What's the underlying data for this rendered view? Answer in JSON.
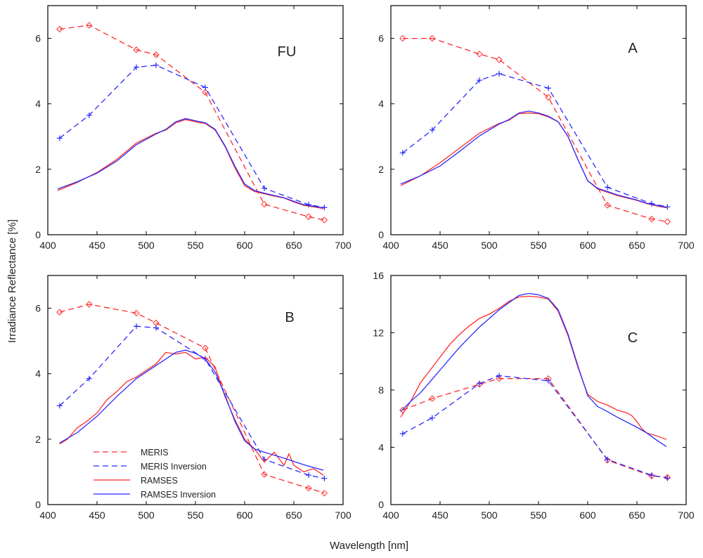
{
  "figure": {
    "ylabel": "Irradiance Reflectance [%]",
    "xlabel": "Wavelength [nm]",
    "colors": {
      "meris": "#ff2a2a",
      "inversion": "#2a2aff",
      "axis": "#000000"
    }
  },
  "legend": {
    "items": [
      {
        "label": "MERIS",
        "style": "dashed",
        "color": "#ff2a2a"
      },
      {
        "label": "MERIS Inversion",
        "style": "dashed",
        "color": "#2a2aff"
      },
      {
        "label": "RAMSES",
        "style": "solid",
        "color": "#ff2a2a"
      },
      {
        "label": "RAMSES Inversion",
        "style": "solid",
        "color": "#2a2aff"
      }
    ]
  },
  "chart_data": [
    {
      "id": "FU",
      "type": "line",
      "panel_label": "FU",
      "xlim": [
        400,
        700
      ],
      "ylim": [
        0,
        7
      ],
      "xticks": [
        400,
        450,
        500,
        550,
        600,
        650,
        700
      ],
      "yticks": [
        0,
        2,
        4,
        6
      ],
      "series": [
        {
          "name": "MERIS",
          "style": "dashed",
          "marker": "diamond",
          "color": "#ff2a2a",
          "x": [
            412,
            442,
            490,
            510,
            560,
            620,
            665,
            681
          ],
          "y": [
            6.28,
            6.4,
            5.65,
            5.5,
            4.35,
            0.93,
            0.55,
            0.45
          ]
        },
        {
          "name": "MERIS Inversion",
          "style": "dashed",
          "marker": "plus",
          "color": "#2a2aff",
          "x": [
            412,
            442,
            490,
            510,
            560,
            620,
            665,
            681
          ],
          "y": [
            2.95,
            3.65,
            5.12,
            5.18,
            4.5,
            1.42,
            0.92,
            0.83
          ]
        },
        {
          "name": "RAMSES",
          "style": "solid",
          "color": "#ff2a2a",
          "x": [
            410,
            430,
            450,
            470,
            490,
            510,
            520,
            530,
            540,
            550,
            560,
            570,
            580,
            590,
            600,
            610,
            620,
            630,
            640,
            650,
            660,
            670,
            680
          ],
          "y": [
            1.35,
            1.6,
            1.9,
            2.3,
            2.8,
            3.1,
            3.2,
            3.42,
            3.52,
            3.45,
            3.4,
            3.2,
            2.7,
            2.05,
            1.5,
            1.32,
            1.25,
            1.18,
            1.12,
            1.0,
            0.9,
            0.85,
            0.8
          ]
        },
        {
          "name": "RAMSES Inversion",
          "style": "solid",
          "color": "#2a2aff",
          "x": [
            410,
            430,
            450,
            470,
            490,
            510,
            520,
            530,
            540,
            550,
            560,
            570,
            580,
            590,
            600,
            610,
            620,
            630,
            640,
            650,
            660,
            670,
            680
          ],
          "y": [
            1.4,
            1.62,
            1.88,
            2.25,
            2.75,
            3.08,
            3.22,
            3.45,
            3.55,
            3.48,
            3.42,
            3.22,
            2.72,
            2.1,
            1.55,
            1.35,
            1.27,
            1.2,
            1.13,
            1.02,
            0.92,
            0.87,
            0.82
          ]
        }
      ]
    },
    {
      "id": "A",
      "type": "line",
      "panel_label": "A",
      "xlim": [
        400,
        700
      ],
      "ylim": [
        0,
        7
      ],
      "xticks": [
        400,
        450,
        500,
        550,
        600,
        650,
        700
      ],
      "yticks": [
        0,
        2,
        4,
        6
      ],
      "series": [
        {
          "name": "MERIS",
          "style": "dashed",
          "marker": "diamond",
          "color": "#ff2a2a",
          "x": [
            412,
            442,
            490,
            510,
            560,
            620,
            665,
            681
          ],
          "y": [
            6.0,
            6.0,
            5.52,
            5.35,
            4.2,
            0.9,
            0.48,
            0.4
          ]
        },
        {
          "name": "MERIS Inversion",
          "style": "dashed",
          "marker": "plus",
          "color": "#2a2aff",
          "x": [
            412,
            442,
            490,
            510,
            560,
            620,
            665,
            681
          ],
          "y": [
            2.5,
            3.2,
            4.72,
            4.92,
            4.48,
            1.45,
            0.95,
            0.85
          ]
        },
        {
          "name": "RAMSES",
          "style": "solid",
          "color": "#ff2a2a",
          "x": [
            410,
            430,
            450,
            470,
            490,
            510,
            520,
            530,
            540,
            550,
            560,
            570,
            580,
            590,
            600,
            610,
            620,
            630,
            640,
            650,
            660,
            670,
            680
          ],
          "y": [
            1.5,
            1.8,
            2.2,
            2.65,
            3.1,
            3.4,
            3.5,
            3.7,
            3.72,
            3.7,
            3.6,
            3.45,
            3.0,
            2.3,
            1.65,
            1.4,
            1.3,
            1.2,
            1.12,
            1.05,
            0.95,
            0.88,
            0.82
          ]
        },
        {
          "name": "RAMSES Inversion",
          "style": "solid",
          "color": "#2a2aff",
          "x": [
            410,
            430,
            450,
            470,
            490,
            510,
            520,
            530,
            540,
            550,
            560,
            570,
            580,
            590,
            600,
            610,
            620,
            630,
            640,
            650,
            660,
            670,
            680
          ],
          "y": [
            1.55,
            1.8,
            2.1,
            2.55,
            3.02,
            3.38,
            3.52,
            3.72,
            3.78,
            3.72,
            3.62,
            3.45,
            3.0,
            2.3,
            1.65,
            1.42,
            1.32,
            1.22,
            1.14,
            1.06,
            0.96,
            0.9,
            0.84
          ]
        }
      ]
    },
    {
      "id": "B",
      "type": "line",
      "panel_label": "B",
      "xlim": [
        400,
        700
      ],
      "ylim": [
        0,
        7
      ],
      "xticks": [
        400,
        450,
        500,
        550,
        600,
        650,
        700
      ],
      "yticks": [
        0,
        2,
        4,
        6
      ],
      "series": [
        {
          "name": "MERIS",
          "style": "dashed",
          "marker": "diamond",
          "color": "#ff2a2a",
          "x": [
            412,
            442,
            490,
            510,
            560,
            620,
            665,
            681
          ],
          "y": [
            5.88,
            6.12,
            5.85,
            5.55,
            4.78,
            0.92,
            0.5,
            0.35
          ]
        },
        {
          "name": "MERIS Inversion",
          "style": "dashed",
          "marker": "plus",
          "color": "#2a2aff",
          "x": [
            412,
            442,
            490,
            510,
            560,
            620,
            665,
            681
          ],
          "y": [
            3.02,
            3.85,
            5.45,
            5.4,
            4.45,
            1.38,
            0.9,
            0.8
          ]
        },
        {
          "name": "RAMSES",
          "style": "solid",
          "color": "#ff2a2a",
          "x": [
            412,
            420,
            430,
            440,
            450,
            460,
            470,
            480,
            490,
            500,
            510,
            520,
            530,
            540,
            550,
            560,
            570,
            580,
            590,
            600,
            610,
            620,
            630,
            640,
            645,
            650,
            660,
            670,
            680
          ],
          "y": [
            1.85,
            2.0,
            2.35,
            2.55,
            2.8,
            3.2,
            3.45,
            3.75,
            3.9,
            4.1,
            4.3,
            4.65,
            4.6,
            4.65,
            4.45,
            4.5,
            4.2,
            3.3,
            2.6,
            2.0,
            1.7,
            1.3,
            1.6,
            1.2,
            1.55,
            1.2,
            1.0,
            1.1,
            0.9
          ]
        },
        {
          "name": "RAMSES Inversion",
          "style": "solid",
          "color": "#2a2aff",
          "x": [
            412,
            430,
            450,
            470,
            490,
            510,
            520,
            530,
            540,
            550,
            560,
            570,
            580,
            590,
            600,
            610,
            620,
            640,
            660,
            680
          ],
          "y": [
            1.88,
            2.2,
            2.7,
            3.3,
            3.85,
            4.25,
            4.45,
            4.65,
            4.72,
            4.62,
            4.45,
            4.05,
            3.35,
            2.55,
            1.95,
            1.7,
            1.6,
            1.42,
            1.22,
            1.05
          ]
        }
      ]
    },
    {
      "id": "C",
      "type": "line",
      "panel_label": "C",
      "xlim": [
        400,
        700
      ],
      "ylim": [
        0,
        16
      ],
      "xticks": [
        400,
        450,
        500,
        550,
        600,
        650,
        700
      ],
      "yticks": [
        0,
        4,
        8,
        12,
        16
      ],
      "series": [
        {
          "name": "MERIS",
          "style": "dashed",
          "marker": "diamond",
          "color": "#ff2a2a",
          "x": [
            412,
            442,
            490,
            510,
            560,
            620,
            665,
            681
          ],
          "y": [
            6.6,
            7.4,
            8.4,
            8.8,
            8.8,
            3.1,
            2.0,
            1.9
          ]
        },
        {
          "name": "MERIS Inversion",
          "style": "dashed",
          "marker": "plus",
          "color": "#2a2aff",
          "x": [
            412,
            442,
            490,
            510,
            560,
            620,
            665,
            681
          ],
          "y": [
            4.95,
            6.05,
            8.45,
            9.0,
            8.65,
            3.15,
            2.05,
            1.85
          ]
        },
        {
          "name": "RAMSES",
          "style": "solid",
          "color": "#ff2a2a",
          "x": [
            410,
            420,
            430,
            440,
            450,
            460,
            470,
            480,
            490,
            500,
            510,
            520,
            530,
            540,
            550,
            560,
            570,
            580,
            590,
            600,
            610,
            620,
            630,
            640,
            645,
            650,
            655,
            660,
            670,
            680
          ],
          "y": [
            6.1,
            7.2,
            8.5,
            9.4,
            10.3,
            11.2,
            11.9,
            12.5,
            13.0,
            13.3,
            13.7,
            14.2,
            14.5,
            14.55,
            14.5,
            14.35,
            13.5,
            11.8,
            9.6,
            7.7,
            7.2,
            6.95,
            6.6,
            6.4,
            6.2,
            5.8,
            5.3,
            5.0,
            4.8,
            4.55
          ]
        },
        {
          "name": "RAMSES Inversion",
          "style": "solid",
          "color": "#2a2aff",
          "x": [
            410,
            420,
            430,
            440,
            450,
            460,
            470,
            480,
            490,
            500,
            510,
            520,
            530,
            540,
            550,
            560,
            570,
            580,
            590,
            600,
            610,
            620,
            630,
            640,
            650,
            660,
            670,
            680
          ],
          "y": [
            6.5,
            7.2,
            7.8,
            8.6,
            9.4,
            10.2,
            11.0,
            11.7,
            12.4,
            13.0,
            13.6,
            14.1,
            14.6,
            14.75,
            14.65,
            14.4,
            13.6,
            11.9,
            9.7,
            7.6,
            6.85,
            6.5,
            6.1,
            5.75,
            5.4,
            5.0,
            4.5,
            4.05
          ]
        }
      ]
    }
  ]
}
